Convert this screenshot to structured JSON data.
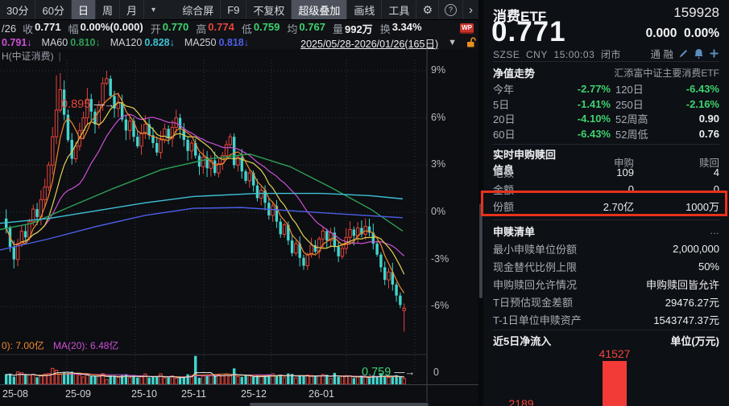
{
  "toolbar": {
    "period_tabs": [
      {
        "label": "30分",
        "active": false
      },
      {
        "label": "60分",
        "active": false
      },
      {
        "label": "日",
        "active": true
      },
      {
        "label": "周",
        "active": false
      },
      {
        "label": "月",
        "active": false
      }
    ],
    "period_dropdown_icon": "▾",
    "tool_buttons": [
      {
        "label": "综合屏",
        "active": false
      },
      {
        "label": "F9",
        "active": false
      },
      {
        "label": "不复权",
        "active": false
      },
      {
        "label": "超级叠加",
        "active": true
      },
      {
        "label": "画线",
        "active": false
      },
      {
        "label": "工具",
        "active": false
      }
    ],
    "gear_icon": "⚙",
    "help_icon": "?",
    "more_icon": "›"
  },
  "quote_row": {
    "prefix": "/26",
    "fields": [
      {
        "label": "收",
        "value": "0.771",
        "color": "#f0f1f3"
      },
      {
        "label": "幅",
        "value": "0.00%(0.000)",
        "color": "#f0f1f3"
      },
      {
        "label": "开",
        "value": "0.770",
        "color": "#3ed26e"
      },
      {
        "label": "高",
        "value": "0.774",
        "color": "#e6453c"
      },
      {
        "label": "低",
        "value": "0.759",
        "color": "#3ed26e"
      },
      {
        "label": "均",
        "value": "0.767",
        "color": "#3ed26e"
      },
      {
        "label": "量",
        "value": "992万",
        "color": "#f0f1f3"
      },
      {
        "label": "换",
        "value": "3.34%",
        "color": "#f0f1f3"
      }
    ],
    "wp_badge": "WP"
  },
  "ma_row": {
    "items": [
      {
        "label": "",
        "value": "0.791",
        "arrow": "↓",
        "color": "#cf4fd6"
      },
      {
        "label": "MA60",
        "value": "0.810",
        "arrow": "↓",
        "color": "#2f9e55"
      },
      {
        "label": "MA120",
        "value": "0.828",
        "arrow": "↓",
        "color": "#3ec1d4"
      },
      {
        "label": "MA250",
        "value": "0.818",
        "arrow": "↓",
        "color": "#4d5fe6"
      }
    ],
    "date_range": "2025/05/28-2026/01/26(165日)",
    "collapse_icon": "▼"
  },
  "chart": {
    "series_label": "H(中证消费)",
    "vol_label_left": "0): 7.00亿",
    "vol_label_right": "MA(20): 6.48亿",
    "y_ticks": [
      "9%",
      "6%",
      "3%",
      "0%",
      "-3%",
      "-6%"
    ],
    "x_ticks": [
      "25-08",
      "25-09",
      "25-10",
      "25-11",
      "25-12",
      "26-01"
    ],
    "vol_zero_label": "0",
    "peak_annotation": {
      "text": "0.895",
      "arrow": "—→",
      "color": "#e6453c"
    },
    "low_annotation": {
      "text": "0.759",
      "arrow": "—→",
      "color": "#3ed26e"
    }
  },
  "chart_data": {
    "kline": {
      "type": "candlestick",
      "title": "消费ETF 159928 日K 2025/05/28-2026/01/26(165日)",
      "y_unit": "%",
      "y_ticks_pct": [
        9,
        6,
        3,
        0,
        -3,
        -6
      ],
      "x_month_labels": [
        "25-08",
        "25-09",
        "25-10",
        "25-11",
        "25-12",
        "26-01"
      ],
      "high_label": 0.895,
      "low_label": 0.759,
      "closes_pct": [
        -1.0,
        -2.2,
        -3.0,
        -2.0,
        -1.2,
        -1.6,
        -0.6,
        0.2,
        -0.3,
        0.8,
        1.6,
        3.0,
        4.8,
        6.5,
        7.8,
        6.2,
        4.6,
        3.4,
        4.2,
        5.2,
        6.0,
        7.2,
        6.4,
        5.6,
        6.8,
        8.2,
        8.5,
        7.4,
        6.6,
        7.0,
        5.9,
        5.2,
        5.8,
        4.8,
        4.2,
        5.0,
        5.6,
        4.9,
        4.4,
        3.8,
        4.6,
        5.3,
        4.7,
        5.4,
        6.0,
        5.3,
        4.6,
        3.9,
        4.4,
        3.6,
        2.9,
        3.5,
        2.8,
        3.3,
        2.5,
        3.1,
        3.6,
        4.3,
        4.8,
        3.0,
        3.5,
        2.6,
        2.0,
        2.5,
        1.7,
        0.9,
        1.4,
        0.6,
        -0.2,
        0.4,
        -0.6,
        -1.4,
        -0.8,
        -1.8,
        -2.6,
        -2.0,
        -2.9,
        -3.4,
        -2.7,
        -2.1,
        -2.5,
        -1.7,
        -1.2,
        -1.8,
        -1.3,
        -2.2,
        -2.8,
        -2.3,
        -1.6,
        -1.1,
        -1.5,
        -1.0,
        -1.4,
        -0.9,
        -1.3,
        -2.0,
        -2.7,
        -3.5,
        -4.3,
        -3.8,
        -4.6,
        -5.3,
        -5.9,
        -6.1
      ],
      "candle_overrides": {
        "13": {
          "h": 8.7
        },
        "14": {
          "h": 8.85
        },
        "21": {
          "h": 7.9
        },
        "26": {
          "h": 9.0
        },
        "103": {
          "o": -6.25,
          "h": -5.8,
          "l": -7.6
        }
      },
      "up_color": "#e6453c",
      "down_color": "#42d5cd",
      "overlay_ma_colors": {
        "ma5": "#f0882e",
        "ma10": "#e3d152",
        "ma20": "#cf4fd6"
      },
      "slow_ma_lines": {
        "ma60": {
          "color": "#2f9e55",
          "pts": [
            [
              0,
              -1.1
            ],
            [
              40,
              -0.7
            ],
            [
              80,
              0.2
            ],
            [
              140,
              1.5
            ],
            [
              200,
              2.7
            ],
            [
              260,
              3.4
            ],
            [
              310,
              3.7
            ],
            [
              360,
              2.9
            ],
            [
              410,
              1.6
            ],
            [
              460,
              0.2
            ],
            [
              500,
              -1.2
            ]
          ]
        },
        "ma120": {
          "color": "#3ec1d4",
          "pts": [
            [
              0,
              -0.7
            ],
            [
              60,
              -0.4
            ],
            [
              120,
              0.1
            ],
            [
              180,
              0.6
            ],
            [
              240,
              1.0
            ],
            [
              320,
              1.2
            ],
            [
              400,
              1.2
            ],
            [
              460,
              1.05
            ],
            [
              500,
              0.85
            ]
          ]
        },
        "ma250": {
          "color": "#4d5fe6",
          "pts": [
            [
              0,
              -2.4
            ],
            [
              60,
              -1.7
            ],
            [
              120,
              -0.9
            ],
            [
              180,
              -0.2
            ],
            [
              240,
              0.25
            ],
            [
              300,
              0.3
            ],
            [
              360,
              0.1
            ],
            [
              420,
              -0.1
            ],
            [
              500,
              -0.35
            ]
          ]
        }
      },
      "volume_ma_colors": [
        "#e8e8e8",
        "#f0882e",
        "#cf4fd6"
      ],
      "volume_spike": {
        "index": 49,
        "value": 0.93
      }
    },
    "net_inflow": {
      "type": "bar",
      "title": "近5日净流入",
      "unit": "万元",
      "values": [
        2189,
        41527
      ],
      "bar_color": "#f23b37",
      "label_color": "#f0453c"
    }
  },
  "panel": {
    "name": "消费ETF",
    "code": "159928",
    "price": "0.771",
    "change": "0.000",
    "change_pct": "0.00%",
    "exchange": "SZSE",
    "currency": "CNY",
    "time": "15:00:03",
    "session": "闭市",
    "tags": [
      "通",
      "融"
    ],
    "nav_section": {
      "title": "净值走势",
      "fund_name": "汇添富中证主要消费ETF",
      "rows": [
        {
          "l1": "今年",
          "v1": "-2.77%",
          "c1": "green",
          "l2": "120日",
          "v2": "-6.43%",
          "c2": "green"
        },
        {
          "l1": "5日",
          "v1": "-1.41%",
          "c1": "green",
          "l2": "250日",
          "v2": "-2.16%",
          "c2": "green"
        },
        {
          "l1": "20日",
          "v1": "-4.10%",
          "c1": "green",
          "l2": "52周高",
          "v2": "0.90",
          "c2": "white"
        },
        {
          "l1": "60日",
          "v1": "-6.43%",
          "c1": "green",
          "l2": "52周低",
          "v2": "0.76",
          "c2": "white"
        }
      ]
    },
    "pr_section": {
      "title": "实时申购赎回信息",
      "col1": "申购",
      "col2": "赎回",
      "rows": [
        {
          "label": "笔数",
          "v1": "109",
          "v2": "4"
        },
        {
          "label": "金额",
          "v1": "0",
          "v2": "0"
        },
        {
          "label": "份额",
          "v1": "2.70亿",
          "v2": "1000万",
          "highlight": true
        }
      ]
    },
    "list_section": {
      "title": "申赎清单",
      "more": "…",
      "rows": [
        {
          "label": "最小申赎单位份额",
          "value": "2,000,000"
        },
        {
          "label": "现金替代比例上限",
          "value": "50%"
        },
        {
          "label": "申购赎回允许情况",
          "value": "申购赎回皆允许"
        },
        {
          "label": "T日预估现金差额",
          "value": "29476.27元"
        },
        {
          "label": "T-1日单位申赎资产",
          "value": "1543747.37元"
        }
      ]
    },
    "flow_section": {
      "title": "近5日净流入",
      "unit": "单位(万元)"
    }
  }
}
